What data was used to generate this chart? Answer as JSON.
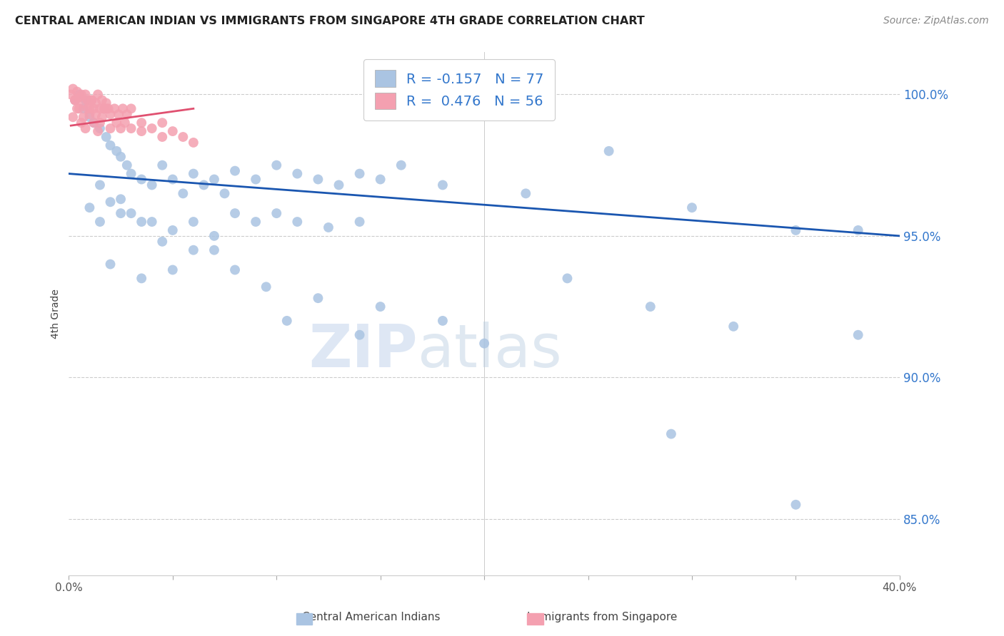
{
  "title": "CENTRAL AMERICAN INDIAN VS IMMIGRANTS FROM SINGAPORE 4TH GRADE CORRELATION CHART",
  "source": "Source: ZipAtlas.com",
  "ylabel": "4th Grade",
  "yticks": [
    85.0,
    90.0,
    95.0,
    100.0
  ],
  "ytick_labels": [
    "85.0%",
    "90.0%",
    "95.0%",
    "100.0%"
  ],
  "xmin": 0.0,
  "xmax": 40.0,
  "ymin": 83.0,
  "ymax": 101.5,
  "blue_color": "#aac4e2",
  "pink_color": "#f4a0b0",
  "blue_line_color": "#1a56b0",
  "pink_line_color": "#e05070",
  "watermark_zip": "ZIP",
  "watermark_atlas": "atlas",
  "blue_scatter_x": [
    0.3,
    0.5,
    0.7,
    0.8,
    1.0,
    1.2,
    1.5,
    1.8,
    2.0,
    2.3,
    2.5,
    2.8,
    3.0,
    3.5,
    4.0,
    4.5,
    5.0,
    5.5,
    6.0,
    6.5,
    7.0,
    7.5,
    8.0,
    9.0,
    10.0,
    11.0,
    12.0,
    13.0,
    14.0,
    15.0,
    16.0,
    18.0,
    22.0,
    26.0,
    30.0,
    35.0,
    38.0,
    1.0,
    1.5,
    2.0,
    2.5,
    3.0,
    4.0,
    5.0,
    6.0,
    7.0,
    8.0,
    9.0,
    10.0,
    11.0,
    12.5,
    14.0,
    2.0,
    3.5,
    5.0,
    7.0,
    9.5,
    12.0,
    15.0,
    18.0,
    24.0,
    28.0,
    32.0,
    38.0,
    1.5,
    2.5,
    3.5,
    4.5,
    6.0,
    8.0,
    10.5,
    14.0,
    20.0,
    29.0,
    35.0
  ],
  "blue_scatter_y": [
    99.8,
    100.0,
    99.5,
    99.8,
    99.2,
    99.0,
    98.8,
    98.5,
    98.2,
    98.0,
    97.8,
    97.5,
    97.2,
    97.0,
    96.8,
    97.5,
    97.0,
    96.5,
    97.2,
    96.8,
    97.0,
    96.5,
    97.3,
    97.0,
    97.5,
    97.2,
    97.0,
    96.8,
    97.2,
    97.0,
    97.5,
    96.8,
    96.5,
    98.0,
    96.0,
    95.2,
    95.2,
    96.0,
    95.5,
    96.2,
    95.8,
    95.8,
    95.5,
    95.2,
    95.5,
    95.0,
    95.8,
    95.5,
    95.8,
    95.5,
    95.3,
    95.5,
    94.0,
    93.5,
    93.8,
    94.5,
    93.2,
    92.8,
    92.5,
    92.0,
    93.5,
    92.5,
    91.8,
    91.5,
    96.8,
    96.3,
    95.5,
    94.8,
    94.5,
    93.8,
    92.0,
    91.5,
    91.2,
    88.0,
    85.5
  ],
  "pink_scatter_x": [
    0.1,
    0.2,
    0.3,
    0.4,
    0.5,
    0.6,
    0.7,
    0.8,
    0.9,
    1.0,
    1.1,
    1.2,
    1.3,
    1.4,
    1.5,
    1.6,
    1.7,
    1.8,
    1.9,
    2.0,
    2.2,
    2.4,
    2.6,
    2.8,
    3.0,
    3.5,
    4.0,
    4.5,
    5.0,
    5.5,
    6.0,
    0.2,
    0.4,
    0.6,
    0.8,
    1.0,
    1.2,
    1.4,
    1.6,
    1.8,
    2.0,
    2.3,
    2.5,
    2.7,
    3.0,
    3.5,
    4.5,
    0.3,
    0.5,
    0.7,
    0.9,
    1.1,
    1.3,
    1.5,
    1.7
  ],
  "pink_scatter_y": [
    100.0,
    100.2,
    99.8,
    100.1,
    99.9,
    100.0,
    99.7,
    100.0,
    99.8,
    99.5,
    99.8,
    99.5,
    99.7,
    100.0,
    99.5,
    99.8,
    99.5,
    99.7,
    99.5,
    99.3,
    99.5,
    99.3,
    99.5,
    99.3,
    99.5,
    99.0,
    98.8,
    99.0,
    98.7,
    98.5,
    98.3,
    99.2,
    99.5,
    99.0,
    98.8,
    99.3,
    99.0,
    98.7,
    99.2,
    99.5,
    98.8,
    99.0,
    98.8,
    99.0,
    98.8,
    98.7,
    98.5,
    99.8,
    99.5,
    99.2,
    99.5,
    99.8,
    99.3,
    99.0,
    99.5
  ],
  "blue_line_x0": 0.0,
  "blue_line_y0": 97.2,
  "blue_line_x1": 40.0,
  "blue_line_y1": 95.0,
  "pink_line_x0": 0.1,
  "pink_line_y0": 98.9,
  "pink_line_x1": 6.0,
  "pink_line_y1": 99.5
}
